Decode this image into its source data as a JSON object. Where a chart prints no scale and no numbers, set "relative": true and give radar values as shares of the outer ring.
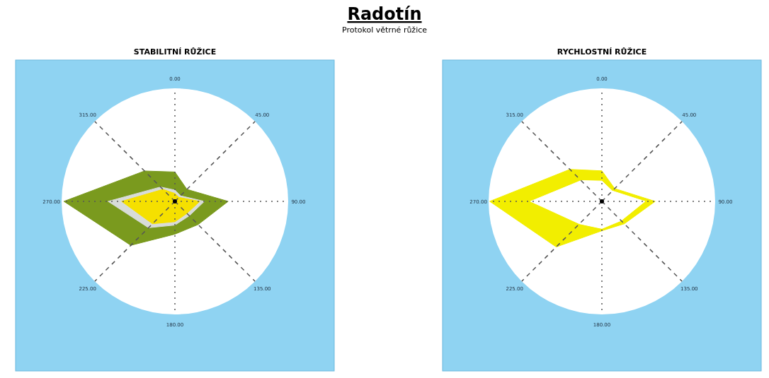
{
  "chart_data": [
    {
      "type": "other",
      "title": "Radotín",
      "subtitle": "Protokol větrné růžice"
    },
    {
      "type": "radar",
      "title": "STABILITNÍ RŮŽICE",
      "relative": true,
      "grid": true,
      "categories": [
        "0.00",
        "45.00",
        "90.00",
        "135.00",
        "180.00",
        "225.00",
        "270.00",
        "315.00"
      ],
      "series": [
        {
          "color": "#7a9a1e",
          "values": [
            0.26,
            0.15,
            0.47,
            0.29,
            0.29,
            0.55,
            0.98,
            0.38
          ]
        },
        {
          "color": "#d8dcd8",
          "values": [
            0.1,
            0.07,
            0.26,
            0.18,
            0.21,
            0.33,
            0.59,
            0.18
          ]
        },
        {
          "color": "#f5e000",
          "values": [
            0.07,
            0.05,
            0.22,
            0.15,
            0.18,
            0.28,
            0.47,
            0.15
          ]
        }
      ]
    },
    {
      "type": "radar",
      "title": "RYCHLOSTNÍ RŮŽICE",
      "relative": true,
      "grid": true,
      "categories": [
        "0.00",
        "45.00",
        "90.00",
        "135.00",
        "180.00",
        "225.00",
        "270.00",
        "315.00"
      ],
      "series": [
        {
          "color": "#f2ee00",
          "values": [
            0.27,
            0.16,
            0.47,
            0.28,
            0.26,
            0.57,
            0.99,
            0.4
          ]
        },
        {
          "color": "#ffffff",
          "values": [
            0.18,
            0.13,
            0.38,
            0.24,
            0.24,
            0.28,
            0.63,
            0.26
          ]
        }
      ]
    }
  ]
}
